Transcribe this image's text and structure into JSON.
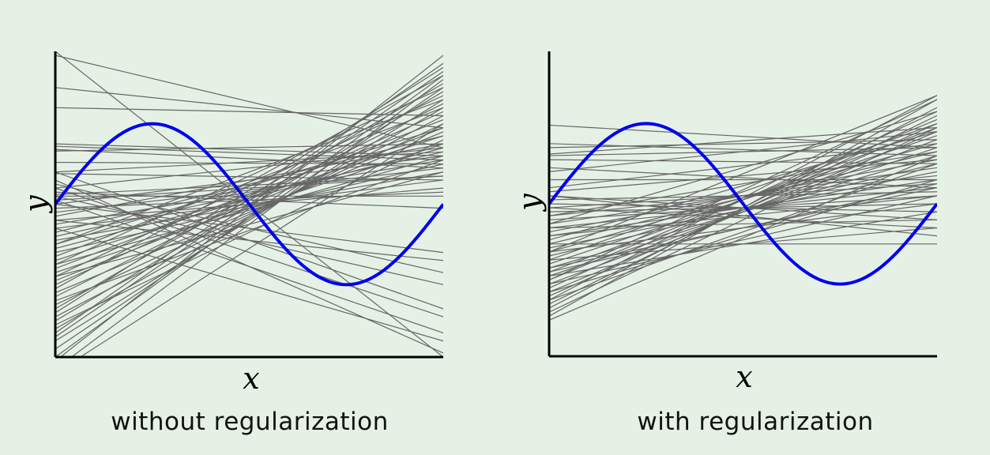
{
  "colors": {
    "background": "#e5f1e5",
    "true_function": "#0000ee",
    "fits": "#666666",
    "axes": "#000000"
  },
  "chart_data": [
    {
      "type": "line",
      "caption": "without regularization",
      "xlabel": "x",
      "ylabel": "y",
      "xlim": [
        0,
        1
      ],
      "ylim": [
        -1.9,
        1.9
      ],
      "grid": false,
      "true_function": {
        "expr": "sin(2*pi*x)",
        "x_range": [
          0,
          1
        ]
      },
      "fits": [
        [
          -2.05,
          1.55
        ],
        [
          -1.9,
          1.6
        ],
        [
          -1.8,
          1.45
        ],
        [
          -1.7,
          1.3
        ],
        [
          -1.65,
          1.65
        ],
        [
          -1.55,
          1.2
        ],
        [
          -1.45,
          1.4
        ],
        [
          -1.4,
          1.1
        ],
        [
          -1.3,
          1.5
        ],
        [
          -1.25,
          1.0
        ],
        [
          -1.15,
          1.25
        ],
        [
          -1.1,
          0.9
        ],
        [
          -1.0,
          1.15
        ],
        [
          -0.95,
          0.95
        ],
        [
          -0.9,
          1.35
        ],
        [
          -0.85,
          0.75
        ],
        [
          -0.8,
          1.05
        ],
        [
          -0.75,
          0.6
        ],
        [
          -0.7,
          0.85
        ],
        [
          -0.65,
          1.2
        ],
        [
          -0.6,
          0.5
        ],
        [
          -0.55,
          0.7
        ],
        [
          -0.5,
          0.95
        ],
        [
          -0.45,
          0.4
        ],
        [
          -0.4,
          0.65
        ],
        [
          -0.35,
          0.85
        ],
        [
          -0.3,
          0.3
        ],
        [
          -0.25,
          0.55
        ],
        [
          -0.2,
          0.2
        ],
        [
          -0.15,
          0.75
        ],
        [
          -0.1,
          0.45
        ],
        [
          -0.05,
          0.15
        ],
        [
          0.0,
          0.6
        ],
        [
          0.05,
          0.35
        ],
        [
          0.1,
          0.1
        ],
        [
          -1.95,
          1.85
        ],
        [
          -1.6,
          1.75
        ],
        [
          -1.35,
          1.7
        ],
        [
          -1.05,
          1.6
        ],
        [
          -0.75,
          1.45
        ],
        [
          -0.5,
          1.3
        ],
        [
          -2.1,
          1.0
        ],
        [
          -1.5,
          0.8
        ],
        [
          -1.2,
          0.55
        ],
        [
          -0.9,
          0.4
        ],
        [
          0.75,
          0.6
        ],
        [
          0.72,
          0.55
        ],
        [
          0.68,
          0.45
        ],
        [
          0.66,
          0.75
        ],
        [
          0.52,
          0.5
        ],
        [
          0.4,
          0.65
        ],
        [
          0.38,
          0.3
        ],
        [
          0.2,
          0.7
        ],
        [
          0.15,
          -0.05
        ],
        [
          0.12,
          0.35
        ],
        [
          1.85,
          0.7
        ],
        [
          1.45,
          0.95
        ],
        [
          1.9,
          -1.9
        ],
        [
          1.2,
          1.1
        ],
        [
          0.0,
          -0.6
        ],
        [
          -0.3,
          -1.7
        ],
        [
          0.3,
          -1.85
        ],
        [
          0.1,
          -1.0
        ],
        [
          0.2,
          -1.4
        ],
        [
          0.25,
          -0.85
        ],
        [
          -0.2,
          -0.7
        ],
        [
          0.05,
          -1.6
        ],
        [
          0.4,
          -1.3
        ]
      ]
    },
    {
      "type": "line",
      "caption": "with regularization",
      "xlabel": "x",
      "ylabel": "y",
      "xlim": [
        0,
        1
      ],
      "ylim": [
        -1.9,
        1.9
      ],
      "grid": false,
      "true_function": {
        "expr": "sin(2*pi*x)",
        "x_range": [
          0,
          1
        ]
      },
      "fits": [
        [
          -1.4,
          1.3
        ],
        [
          -1.3,
          1.2
        ],
        [
          -1.25,
          1.1
        ],
        [
          -1.2,
          1.35
        ],
        [
          -1.15,
          1.0
        ],
        [
          -1.1,
          0.9
        ],
        [
          -1.05,
          1.15
        ],
        [
          -1.0,
          0.8
        ],
        [
          -0.95,
          1.05
        ],
        [
          -0.9,
          0.7
        ],
        [
          -0.85,
          0.95
        ],
        [
          -0.8,
          0.6
        ],
        [
          -0.75,
          0.85
        ],
        [
          -0.7,
          1.0
        ],
        [
          -0.65,
          0.5
        ],
        [
          -0.6,
          0.75
        ],
        [
          -0.55,
          0.4
        ],
        [
          -0.5,
          0.65
        ],
        [
          -0.45,
          0.9
        ],
        [
          -0.4,
          0.3
        ],
        [
          -0.35,
          0.55
        ],
        [
          -0.3,
          0.2
        ],
        [
          -0.25,
          0.45
        ],
        [
          -0.2,
          0.1
        ],
        [
          -0.15,
          0.35
        ],
        [
          -0.1,
          0.0
        ],
        [
          -0.05,
          0.25
        ],
        [
          0.0,
          -0.1
        ],
        [
          0.05,
          0.15
        ],
        [
          0.1,
          -0.2
        ],
        [
          -1.2,
          0.5
        ],
        [
          -1.1,
          0.3
        ],
        [
          -1.0,
          0.1
        ],
        [
          -0.9,
          -0.1
        ],
        [
          -0.8,
          0.2
        ],
        [
          -0.7,
          -0.3
        ],
        [
          -0.6,
          0.0
        ],
        [
          -0.5,
          -0.5
        ],
        [
          -0.4,
          0.1
        ],
        [
          -0.3,
          -0.2
        ],
        [
          0.7,
          0.8
        ],
        [
          0.75,
          0.6
        ],
        [
          0.6,
          0.7
        ],
        [
          0.62,
          0.95
        ],
        [
          0.55,
          0.5
        ],
        [
          0.4,
          0.9
        ],
        [
          0.2,
          0.75
        ],
        [
          0.98,
          0.7
        ],
        [
          0.1,
          -0.4
        ],
        [
          -0.05,
          -0.3
        ],
        [
          0.3,
          0.3
        ],
        [
          -1.35,
          0.95
        ],
        [
          -0.95,
          1.3
        ],
        [
          -0.6,
          1.35
        ],
        [
          -0.25,
          1.15
        ],
        [
          -1.45,
          0.6
        ],
        [
          0.15,
          0.55
        ],
        [
          0.45,
          0.2
        ],
        [
          -0.15,
          0.65
        ],
        [
          -0.85,
          0.25
        ]
      ]
    }
  ]
}
